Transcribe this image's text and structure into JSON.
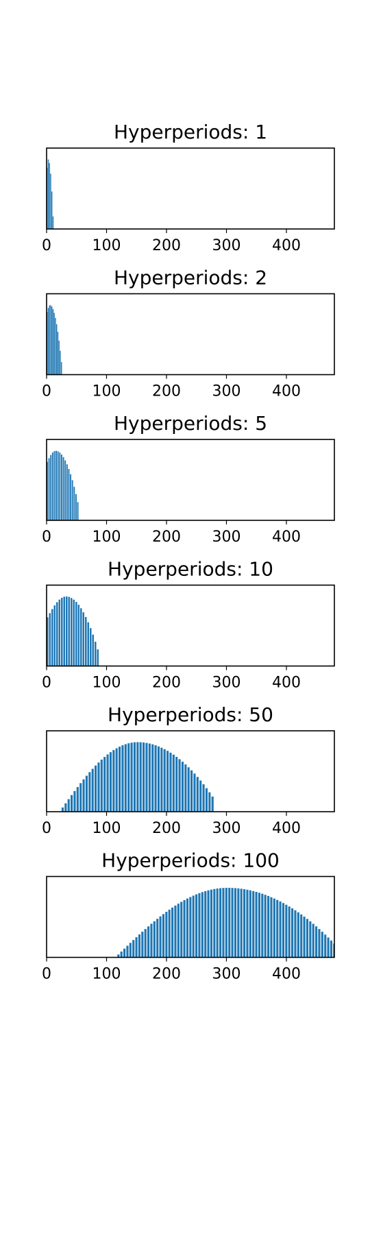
{
  "chart_data": [
    {
      "type": "bar",
      "title": "Hyperperiods: 1",
      "xlabel": "",
      "ylabel": "",
      "xlim": [
        0,
        480
      ],
      "xticks": [
        "0",
        "100",
        "200",
        "300",
        "400"
      ],
      "envelope": {
        "x_start": 0,
        "x_end": 10,
        "x_peak": 2,
        "peak": 1.0,
        "start_level": 0.88
      },
      "bar_spacing": 2,
      "color": "#1f77b4",
      "grid": false,
      "legend": "none"
    },
    {
      "type": "bar",
      "title": "Hyperperiods: 2",
      "xlabel": "",
      "ylabel": "",
      "xlim": [
        0,
        480
      ],
      "xticks": [
        "0",
        "100",
        "200",
        "300",
        "400"
      ],
      "envelope": {
        "x_start": 0,
        "x_end": 24,
        "x_peak": 5,
        "peak": 1.0,
        "start_level": 0.9
      },
      "bar_spacing": 2,
      "color": "#1f77b4",
      "grid": false,
      "legend": "none"
    },
    {
      "type": "bar",
      "title": "Hyperperiods: 5",
      "xlabel": "",
      "ylabel": "",
      "xlim": [
        0,
        480
      ],
      "xticks": [
        "0",
        "100",
        "200",
        "300",
        "400"
      ],
      "envelope": {
        "x_start": 0,
        "x_end": 53,
        "x_peak": 14,
        "peak": 1.0,
        "start_level": 0.84
      },
      "bar_spacing": 3,
      "color": "#1f77b4",
      "grid": false,
      "legend": "none"
    },
    {
      "type": "bar",
      "title": "Hyperperiods: 10",
      "xlabel": "",
      "ylabel": "",
      "xlim": [
        0,
        480
      ],
      "xticks": [
        "0",
        "100",
        "200",
        "300",
        "400"
      ],
      "envelope": {
        "x_start": 0,
        "x_end": 86,
        "x_peak": 31,
        "peak": 1.0,
        "start_level": 0.7
      },
      "bar_spacing": 4,
      "color": "#1f77b4",
      "grid": false,
      "legend": "none"
    },
    {
      "type": "bar",
      "title": "Hyperperiods: 50",
      "xlabel": "",
      "ylabel": "",
      "xlim": [
        0,
        480
      ],
      "xticks": [
        "0",
        "100",
        "200",
        "300",
        "400"
      ],
      "envelope": {
        "x_start": 20,
        "x_end": 278,
        "x_peak": 150,
        "peak": 1.0,
        "start_level": 0.0
      },
      "bar_spacing": 5,
      "color": "#1f77b4",
      "grid": false,
      "legend": "none"
    },
    {
      "type": "bar",
      "title": "Hyperperiods: 100",
      "xlabel": "",
      "ylabel": "",
      "xlim": [
        0,
        480
      ],
      "xticks": [
        "0",
        "100",
        "200",
        "300",
        "400"
      ],
      "envelope": {
        "x_start": 113,
        "x_end": 480,
        "x_peak": 300,
        "peak": 1.0,
        "start_level": 0.0
      },
      "bar_spacing": 5,
      "color": "#1f77b4",
      "grid": false,
      "legend": "none"
    }
  ]
}
